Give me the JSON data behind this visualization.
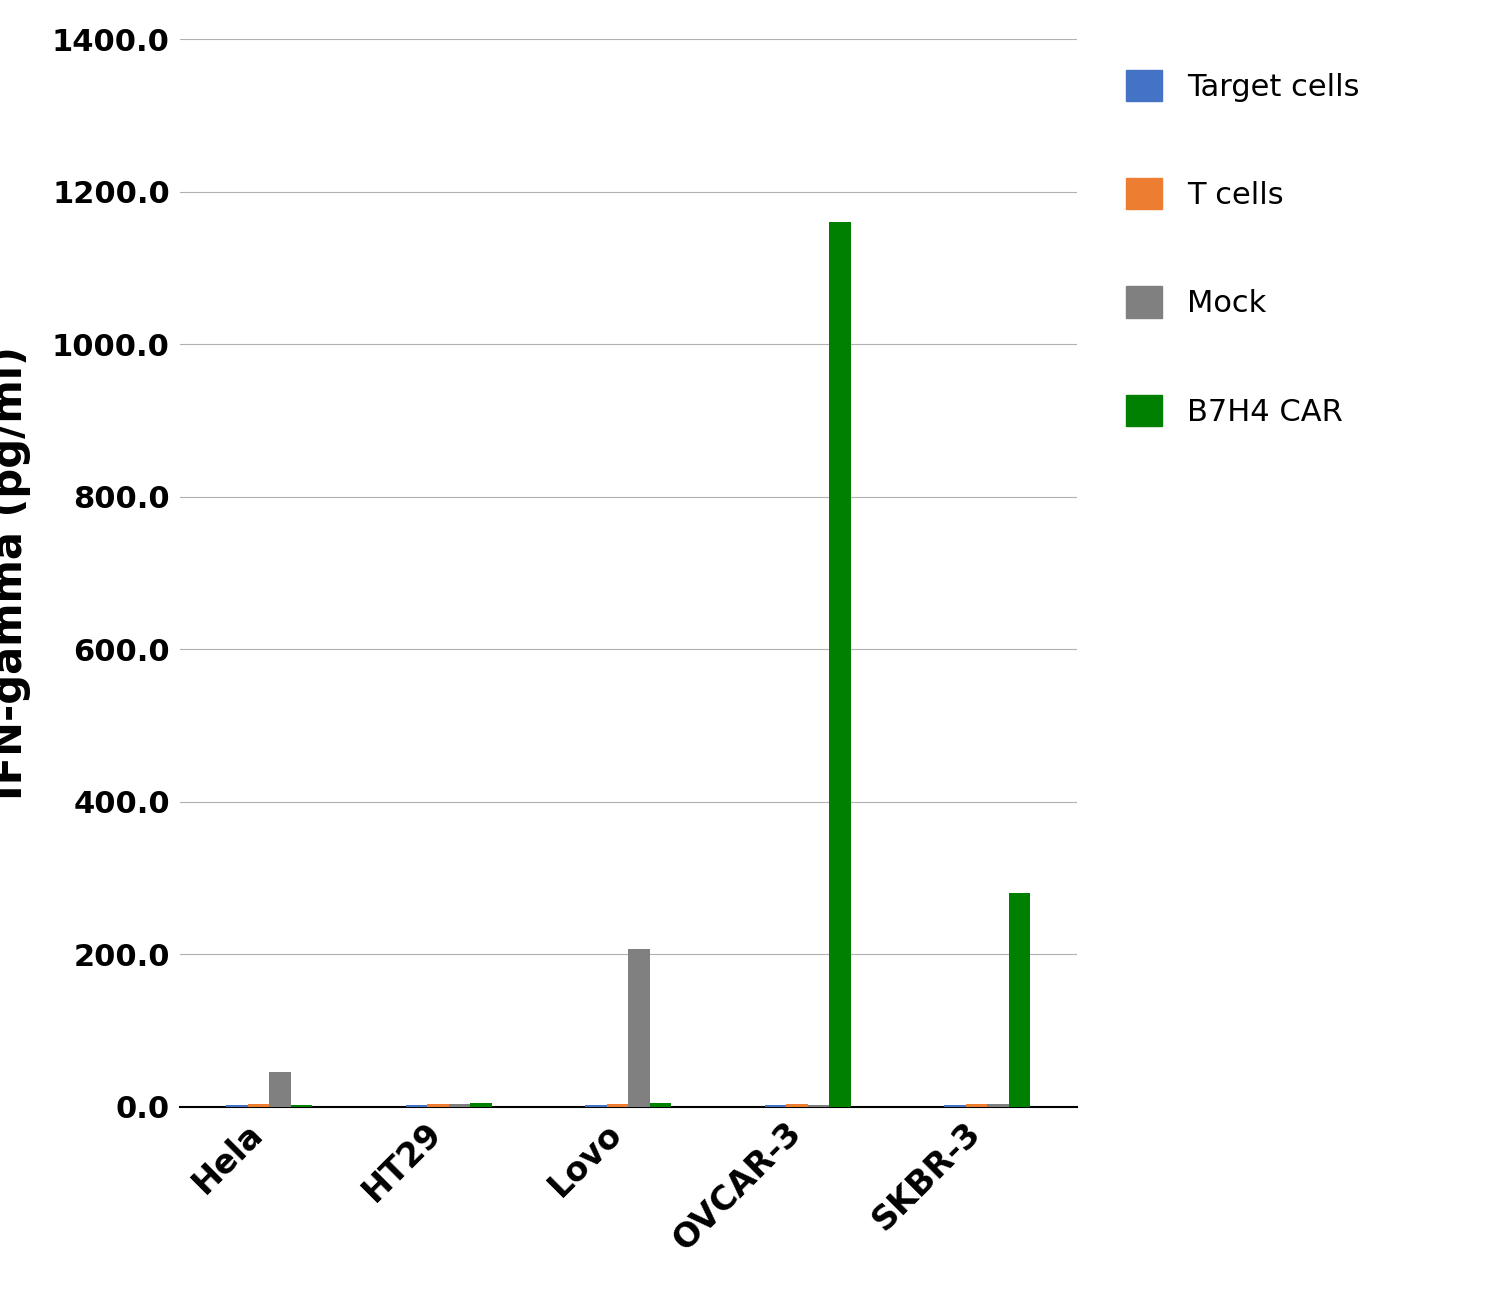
{
  "categories": [
    "Hela",
    "HT29",
    "Lovo",
    "OVCAR-3",
    "SKBR-3"
  ],
  "series": {
    "Target cells": [
      2,
      2,
      2,
      2,
      2
    ],
    "T cells": [
      3,
      3,
      3,
      3,
      3
    ],
    "Mock": [
      45,
      3,
      207,
      2,
      3
    ],
    "B7H4 CAR": [
      2,
      5,
      5,
      1160,
      280
    ]
  },
  "colors": {
    "Target cells": "#4472C4",
    "T cells": "#ED7D31",
    "Mock": "#808080",
    "B7H4 CAR": "#008000"
  },
  "ylabel": "IFN-gamma (pg/ml)",
  "ylim": [
    0,
    1400
  ],
  "yticks": [
    0.0,
    200.0,
    400.0,
    600.0,
    800.0,
    1000.0,
    1200.0,
    1400.0
  ],
  "bar_width": 0.12,
  "background_color": "#ffffff",
  "grid_color": "#b0b0b0",
  "legend_labels": [
    "Target cells",
    "T cells",
    "Mock",
    "B7H4 CAR"
  ]
}
